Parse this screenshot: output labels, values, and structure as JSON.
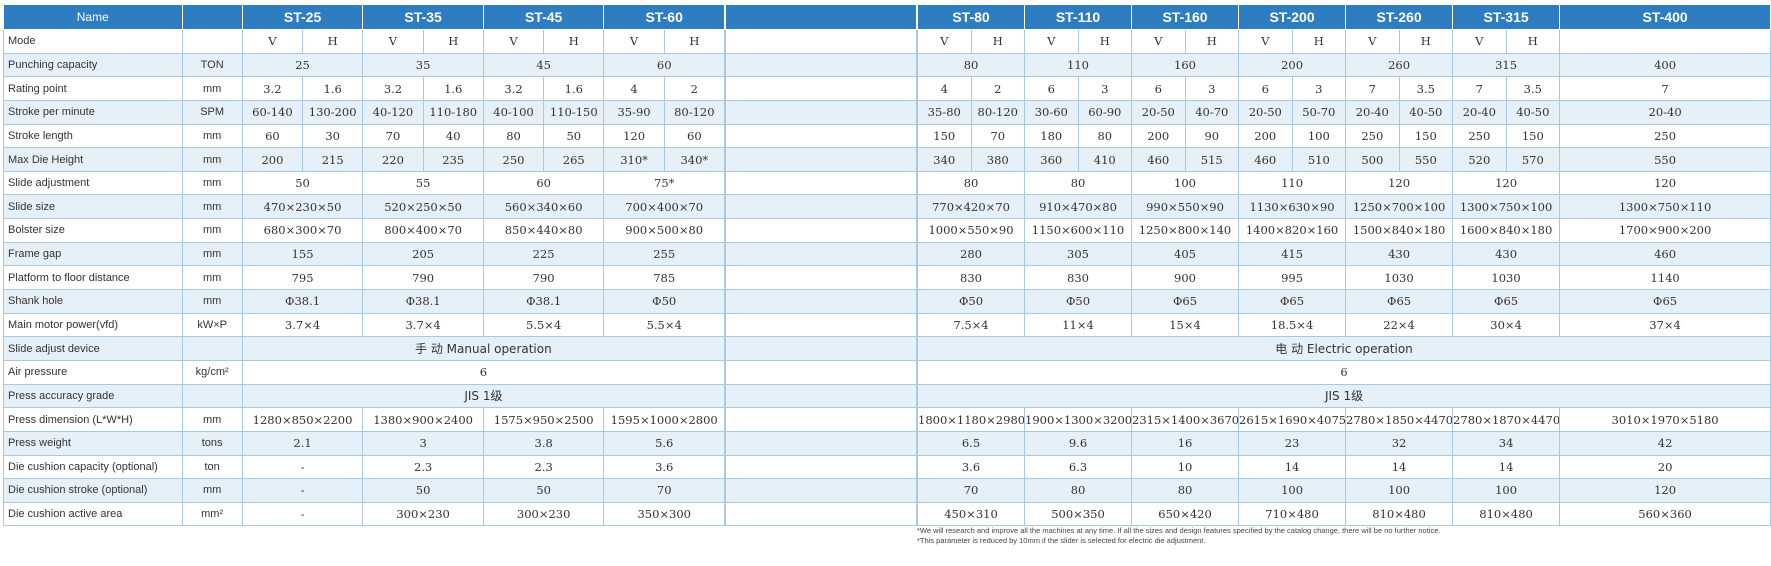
{
  "header": {
    "name": "Name",
    "left_models": [
      "ST-25",
      "ST-35",
      "ST-45",
      "ST-60"
    ],
    "right_models": [
      "ST-80",
      "ST-110",
      "ST-160",
      "ST-200",
      "ST-260",
      "ST-315",
      "ST-400"
    ]
  },
  "rows": [
    {
      "label": "Mode",
      "unit": "",
      "left": [
        "V",
        "H",
        "V",
        "H",
        "V",
        "H",
        "V",
        "H"
      ],
      "right": [
        "V",
        "H",
        "V",
        "H",
        "V",
        "H",
        "V",
        "H",
        "V",
        "H",
        "V",
        "H",
        ""
      ],
      "left_split": true,
      "right_split": true
    },
    {
      "label": "Punching capacity",
      "unit": "TON",
      "left": [
        "25",
        "35",
        "45",
        "60"
      ],
      "right": [
        "80",
        "110",
        "160",
        "200",
        "260",
        "315",
        "400"
      ]
    },
    {
      "label": "Rating point",
      "unit": "mm",
      "left": [
        "3.2",
        "1.6",
        "3.2",
        "1.6",
        "3.2",
        "1.6",
        "4",
        "2"
      ],
      "right": [
        "4",
        "2",
        "6",
        "3",
        "6",
        "3",
        "6",
        "3",
        "7",
        "3.5",
        "7",
        "3.5",
        "7"
      ],
      "left_split": true,
      "right_split": true
    },
    {
      "label": "Stroke per minute",
      "unit": "SPM",
      "left": [
        "60-140",
        "130-200",
        "40-120",
        "110-180",
        "40-100",
        "110-150",
        "35-90",
        "80-120"
      ],
      "right": [
        "35-80",
        "80-120",
        "30-60",
        "60-90",
        "20-50",
        "40-70",
        "20-50",
        "50-70",
        "20-40",
        "40-50",
        "20-40",
        "40-50",
        "20-40"
      ],
      "left_split": true,
      "right_split": true
    },
    {
      "label": "Stroke length",
      "unit": "mm",
      "left": [
        "60",
        "30",
        "70",
        "40",
        "80",
        "50",
        "120",
        "60"
      ],
      "right": [
        "150",
        "70",
        "180",
        "80",
        "200",
        "90",
        "200",
        "100",
        "250",
        "150",
        "250",
        "150",
        "250"
      ],
      "left_split": true,
      "right_split": true
    },
    {
      "label": "Max Die Height",
      "unit": "mm",
      "left": [
        "200",
        "215",
        "220",
        "235",
        "250",
        "265",
        "310*",
        "340*"
      ],
      "right": [
        "340",
        "380",
        "360",
        "410",
        "460",
        "515",
        "460",
        "510",
        "500",
        "550",
        "520",
        "570",
        "550"
      ],
      "left_split": true,
      "right_split": true
    },
    {
      "label": "Slide adjustment",
      "unit": "mm",
      "left": [
        "50",
        "55",
        "60",
        "75*"
      ],
      "right": [
        "80",
        "80",
        "100",
        "110",
        "120",
        "120",
        "120"
      ]
    },
    {
      "label": "Slide size",
      "unit": "mm",
      "left": [
        "470×230×50",
        "520×250×50",
        "560×340×60",
        "700×400×70"
      ],
      "right": [
        "770×420×70",
        "910×470×80",
        "990×550×90",
        "1130×630×90",
        "1250×700×100",
        "1300×750×100",
        "1300×750×110"
      ]
    },
    {
      "label": "Bolster size",
      "unit": "mm",
      "left": [
        "680×300×70",
        "800×400×70",
        "850×440×80",
        "900×500×80"
      ],
      "right": [
        "1000×550×90",
        "1150×600×110",
        "1250×800×140",
        "1400×820×160",
        "1500×840×180",
        "1600×840×180",
        "1700×900×200"
      ]
    },
    {
      "label": "Frame gap",
      "unit": "mm",
      "left": [
        "155",
        "205",
        "225",
        "255"
      ],
      "right": [
        "280",
        "305",
        "405",
        "415",
        "430",
        "430",
        "460"
      ]
    },
    {
      "label": "Platform to floor distance",
      "unit": "mm",
      "left": [
        "795",
        "790",
        "790",
        "785"
      ],
      "right": [
        "830",
        "830",
        "900",
        "995",
        "1030",
        "1030",
        "1140"
      ]
    },
    {
      "label": "Shank hole",
      "unit": "mm",
      "left": [
        "Φ38.1",
        "Φ38.1",
        "Φ38.1",
        "Φ50"
      ],
      "right": [
        "Φ50",
        "Φ50",
        "Φ65",
        "Φ65",
        "Φ65",
        "Φ65",
        "Φ65"
      ]
    },
    {
      "label": "Main motor power(vfd)",
      "unit": "kW×P",
      "left": [
        "3.7×4",
        "3.7×4",
        "5.5×4",
        "5.5×4"
      ],
      "right": [
        "7.5×4",
        "11×4",
        "15×4",
        "18.5×4",
        "22×4",
        "30×4",
        "37×4"
      ]
    },
    {
      "label": "Slide adjust device",
      "unit": "",
      "left_span": "手 动 Manual operation",
      "right_span": "电 动 Electric operation"
    },
    {
      "label": "Air pressure",
      "unit": "kg/cm²",
      "left_span": "6",
      "right_span": "6"
    },
    {
      "label": "Press accuracy grade",
      "unit": "",
      "left_span": "JIS 1级",
      "right_span": "JIS 1级"
    },
    {
      "label": "Press dimension (L*W*H)",
      "unit": "mm",
      "left": [
        "1280×850×2200",
        "1380×900×2400",
        "1575×950×2500",
        "1595×1000×2800"
      ],
      "right": [
        "1800×1180×2980",
        "1900×1300×3200",
        "2315×1400×3670",
        "2615×1690×4075",
        "2780×1850×4470",
        "2780×1870×4470",
        "3010×1970×5180"
      ]
    },
    {
      "label": "Press weight",
      "unit": "tons",
      "left": [
        "2.1",
        "3",
        "3.8",
        "5.6"
      ],
      "right": [
        "6.5",
        "9.6",
        "16",
        "23",
        "32",
        "34",
        "42"
      ]
    },
    {
      "label": "Die cushion capacity (optional)",
      "unit": "ton",
      "left": [
        "-",
        "2.3",
        "2.3",
        "3.6"
      ],
      "right": [
        "3.6",
        "6.3",
        "10",
        "14",
        "14",
        "14",
        "20"
      ]
    },
    {
      "label": "Die cushion stroke (optional)",
      "unit": "mm",
      "left": [
        "-",
        "50",
        "50",
        "70"
      ],
      "right": [
        "70",
        "80",
        "80",
        "100",
        "100",
        "100",
        "120"
      ]
    },
    {
      "label": "Die cushion active area",
      "unit": "mm²",
      "left": [
        "-",
        "300×230",
        "300×230",
        "350×300"
      ],
      "right": [
        "450×310",
        "500×350",
        "650×420",
        "710×480",
        "810×480",
        "810×480",
        "560×360"
      ]
    }
  ],
  "notes": [
    "*We will research and improve all the machines at any time. If all the sizes and design features specified by the catalog change, there will be no further notice.",
    "*This parameter is reduced by 10mm if the slider is selected for electric die adjustment."
  ],
  "colors": {
    "header_bg": "#2d7dc0",
    "stripe": "#e6f0f8",
    "border": "#a9c9e2"
  }
}
